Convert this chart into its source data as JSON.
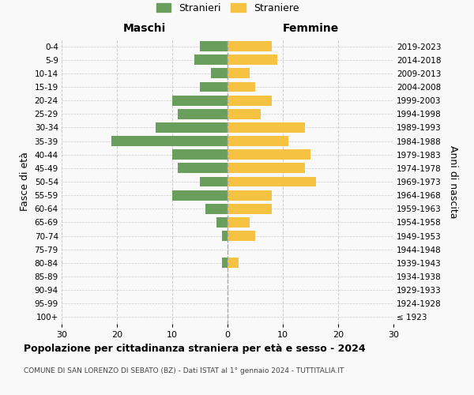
{
  "age_groups": [
    "100+",
    "95-99",
    "90-94",
    "85-89",
    "80-84",
    "75-79",
    "70-74",
    "65-69",
    "60-64",
    "55-59",
    "50-54",
    "45-49",
    "40-44",
    "35-39",
    "30-34",
    "25-29",
    "20-24",
    "15-19",
    "10-14",
    "5-9",
    "0-4"
  ],
  "birth_years": [
    "≤ 1923",
    "1924-1928",
    "1929-1933",
    "1934-1938",
    "1939-1943",
    "1944-1948",
    "1949-1953",
    "1954-1958",
    "1959-1963",
    "1964-1968",
    "1969-1973",
    "1974-1978",
    "1979-1983",
    "1984-1988",
    "1989-1993",
    "1994-1998",
    "1999-2003",
    "2004-2008",
    "2009-2013",
    "2014-2018",
    "2019-2023"
  ],
  "males": [
    0,
    0,
    0,
    0,
    1,
    0,
    1,
    2,
    4,
    10,
    5,
    9,
    10,
    21,
    13,
    9,
    10,
    5,
    3,
    6,
    5
  ],
  "females": [
    0,
    0,
    0,
    0,
    2,
    0,
    5,
    4,
    8,
    8,
    16,
    14,
    15,
    11,
    14,
    6,
    8,
    5,
    4,
    9,
    8
  ],
  "male_color": "#6a9e5c",
  "female_color": "#f5c242",
  "background_color": "#f9f9f9",
  "grid_color": "#cccccc",
  "center_line_color": "#aaaaaa",
  "xlim": 30,
  "title": "Popolazione per cittadinanza straniera per età e sesso - 2024",
  "subtitle": "COMUNE DI SAN LORENZO DI SEBATO (BZ) - Dati ISTAT al 1° gennaio 2024 - TUTTITALIA.IT",
  "xlabel_left": "Maschi",
  "xlabel_right": "Femmine",
  "ylabel_left": "Fasce di età",
  "ylabel_right": "Anni di nascita",
  "legend_male": "Stranieri",
  "legend_female": "Straniere"
}
